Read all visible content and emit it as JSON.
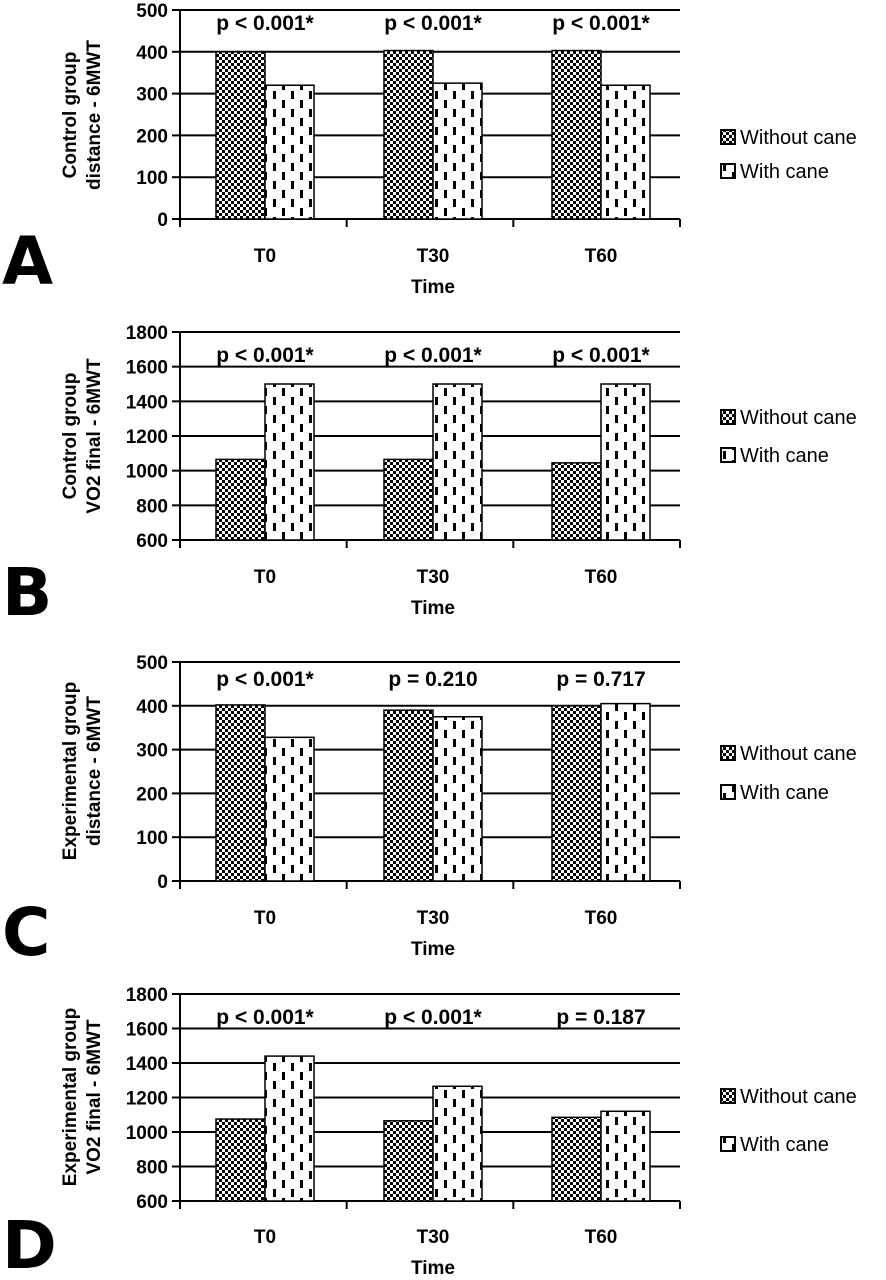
{
  "chart_data": [
    {
      "type": "bar",
      "panel": "A",
      "categories": [
        "T0",
        "T30",
        "T60"
      ],
      "xlabel": "Time",
      "ylabel_lines": [
        "Control group",
        "distance - 6MWT"
      ],
      "ylim": [
        0,
        500
      ],
      "yticks": [
        0,
        100,
        200,
        300,
        400,
        500
      ],
      "grid": true,
      "legend_position": "right",
      "series": [
        {
          "name": "Without cane",
          "values": [
            400,
            403,
            403
          ]
        },
        {
          "name": "With cane",
          "values": [
            320,
            325,
            320
          ]
        }
      ],
      "annotations": [
        "p < 0.001*",
        "p < 0.001*",
        "p < 0.001*"
      ]
    },
    {
      "type": "bar",
      "panel": "B",
      "categories": [
        "T0",
        "T30",
        "T60"
      ],
      "xlabel": "Time",
      "ylabel_lines": [
        "Control group",
        "VO2 final - 6MWT"
      ],
      "ylim": [
        600,
        1800
      ],
      "yticks": [
        600,
        800,
        1000,
        1200,
        1400,
        1600,
        1800
      ],
      "grid": true,
      "legend_position": "right",
      "series": [
        {
          "name": "Without cane",
          "values": [
            1065,
            1065,
            1045
          ]
        },
        {
          "name": "With cane",
          "values": [
            1500,
            1500,
            1500
          ]
        }
      ],
      "annotations": [
        "p < 0.001*",
        "p < 0.001*",
        "p < 0.001*"
      ]
    },
    {
      "type": "bar",
      "panel": "C",
      "categories": [
        "T0",
        "T30",
        "T60"
      ],
      "xlabel": "Time",
      "ylabel_lines": [
        "Experimental group",
        "distance - 6MWT"
      ],
      "ylim": [
        0,
        500
      ],
      "yticks": [
        0,
        100,
        200,
        300,
        400,
        500
      ],
      "grid": true,
      "legend_position": "right",
      "series": [
        {
          "name": "Without cane",
          "values": [
            402,
            390,
            400
          ]
        },
        {
          "name": "With cane",
          "values": [
            328,
            375,
            405
          ]
        }
      ],
      "annotations": [
        "p < 0.001*",
        "p = 0.210",
        "p = 0.717"
      ]
    },
    {
      "type": "bar",
      "panel": "D",
      "categories": [
        "T0",
        "T30",
        "T60"
      ],
      "xlabel": "Time",
      "ylabel_lines": [
        "Experimental group",
        "VO2 final - 6MWT"
      ],
      "ylim": [
        600,
        1800
      ],
      "yticks": [
        600,
        800,
        1000,
        1200,
        1400,
        1600,
        1800
      ],
      "grid": true,
      "legend_position": "right",
      "series": [
        {
          "name": "Without cane",
          "values": [
            1075,
            1065,
            1085
          ]
        },
        {
          "name": "With cane",
          "values": [
            1440,
            1265,
            1120
          ]
        }
      ],
      "annotations": [
        "p < 0.001*",
        "p < 0.001*",
        "p = 0.187"
      ]
    }
  ]
}
